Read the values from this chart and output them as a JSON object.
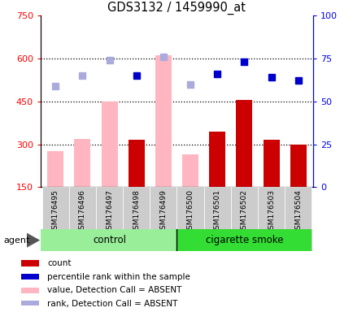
{
  "title": "GDS3132 / 1459990_at",
  "samples": [
    "GSM176495",
    "GSM176496",
    "GSM176497",
    "GSM176498",
    "GSM176499",
    "GSM176500",
    "GSM176501",
    "GSM176502",
    "GSM176503",
    "GSM176504"
  ],
  "absent_flags": [
    true,
    true,
    true,
    false,
    true,
    true,
    false,
    false,
    false,
    false
  ],
  "values_absent": [
    275,
    320,
    450,
    null,
    610,
    265,
    null,
    null,
    null,
    null
  ],
  "counts": [
    null,
    null,
    null,
    315,
    null,
    null,
    345,
    455,
    315,
    300
  ],
  "ranks_absent": [
    59,
    65,
    74,
    null,
    76,
    60,
    null,
    null,
    null,
    null
  ],
  "ranks_present": [
    null,
    null,
    null,
    65,
    null,
    null,
    66,
    73,
    64,
    62
  ],
  "ylim_left": [
    150,
    750
  ],
  "ylim_right": [
    0,
    100
  ],
  "yticks_left": [
    150,
    300,
    450,
    600,
    750
  ],
  "yticks_right": [
    0,
    25,
    50,
    75,
    100
  ],
  "ytick_labels_left": [
    "150",
    "300",
    "450",
    "600",
    "750"
  ],
  "ytick_labels_right": [
    "0",
    "25",
    "50",
    "75",
    "100"
  ],
  "hlines": [
    300,
    450,
    600
  ],
  "bar_width": 0.6,
  "color_absent_bar": "#FFB6C1",
  "color_present_bar": "#CC0000",
  "color_absent_rank": "#AAAADD",
  "color_present_rank": "#0000CC",
  "color_control_bg": "#99EE99",
  "color_smoke_bg": "#33DD33",
  "color_xtick_bg": "#CCCCCC",
  "legend_items": [
    {
      "color": "#CC0000",
      "label": "count"
    },
    {
      "color": "#0000CC",
      "label": "percentile rank within the sample"
    },
    {
      "color": "#FFB6C1",
      "label": "value, Detection Call = ABSENT"
    },
    {
      "color": "#AAAADD",
      "label": "rank, Detection Call = ABSENT"
    }
  ],
  "agent_label": "agent",
  "control_label": "control",
  "smoke_label": "cigarette smoke",
  "n_control": 5,
  "n_smoke": 5
}
